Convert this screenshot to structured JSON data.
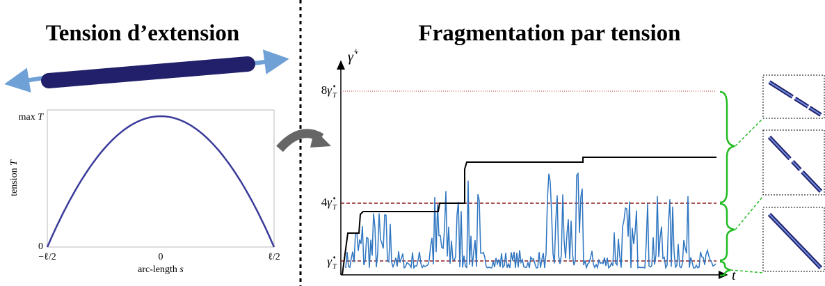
{
  "left": {
    "title": "Tension d’extension",
    "plot": {
      "y_top": "max",
      "y_top_var": "T",
      "y_zero": "0",
      "y_label": "tension",
      "y_label_var": "T",
      "x_left": "−ℓ/2",
      "x_mid": "0",
      "x_right": "ℓ/2",
      "x_label": "arc-length",
      "x_label_var": "s"
    }
  },
  "right": {
    "title": "Fragmentation par tension",
    "y_axis": {
      "symbol": "γ̇",
      "sup": "+"
    },
    "levels": [
      {
        "coef": "8",
        "symbol": "γ̇",
        "sup": "⋆",
        "sub": "T"
      },
      {
        "coef": "4",
        "symbol": "γ̇",
        "sup": "⋆",
        "sub": "T"
      },
      {
        "coef": "",
        "symbol": "γ̇",
        "sup": "⋆",
        "sub": "T"
      }
    ],
    "x_axis": "t"
  }
}
